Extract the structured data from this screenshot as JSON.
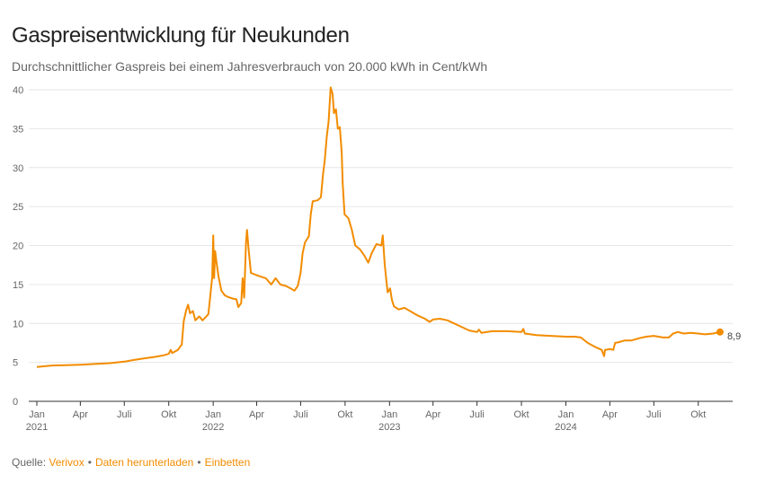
{
  "chart_data": {
    "type": "line",
    "title": "Gaspreisentwicklung für Neukunden",
    "subtitle": "Durchschnittlicher Gaspreis bei einem Jahresverbrauch von 20.000 kWh in Cent/kWh",
    "ylim": [
      0,
      40
    ],
    "yticks": [
      0,
      5,
      10,
      15,
      20,
      25,
      30,
      35,
      40
    ],
    "xlim": [
      "2021-01-01",
      "2024-11-30"
    ],
    "xticks": [
      {
        "date": "2021-01-01",
        "label": "Jan",
        "year": "2021"
      },
      {
        "date": "2021-04-01",
        "label": "Apr",
        "year": ""
      },
      {
        "date": "2021-07-01",
        "label": "Juli",
        "year": ""
      },
      {
        "date": "2021-10-01",
        "label": "Okt",
        "year": ""
      },
      {
        "date": "2022-01-01",
        "label": "Jan",
        "year": "2022"
      },
      {
        "date": "2022-04-01",
        "label": "Apr",
        "year": ""
      },
      {
        "date": "2022-07-01",
        "label": "Juli",
        "year": ""
      },
      {
        "date": "2022-10-01",
        "label": "Okt",
        "year": ""
      },
      {
        "date": "2023-01-01",
        "label": "Jan",
        "year": "2023"
      },
      {
        "date": "2023-04-01",
        "label": "Apr",
        "year": ""
      },
      {
        "date": "2023-07-01",
        "label": "Juli",
        "year": ""
      },
      {
        "date": "2023-10-01",
        "label": "Okt",
        "year": ""
      },
      {
        "date": "2024-01-01",
        "label": "Jan",
        "year": "2024"
      },
      {
        "date": "2024-04-01",
        "label": "Apr",
        "year": ""
      },
      {
        "date": "2024-07-01",
        "label": "Juli",
        "year": ""
      },
      {
        "date": "2024-10-01",
        "label": "Okt",
        "year": ""
      }
    ],
    "grid": true,
    "series": [
      {
        "color": "#f28c00",
        "end_label": "8,9",
        "points": [
          [
            "2021-01-01",
            4.4
          ],
          [
            "2021-01-15",
            4.5
          ],
          [
            "2021-02-01",
            4.6
          ],
          [
            "2021-03-01",
            4.65
          ],
          [
            "2021-04-01",
            4.7
          ],
          [
            "2021-05-01",
            4.8
          ],
          [
            "2021-06-01",
            4.9
          ],
          [
            "2021-07-01",
            5.1
          ],
          [
            "2021-07-20",
            5.3
          ],
          [
            "2021-08-10",
            5.5
          ],
          [
            "2021-09-01",
            5.7
          ],
          [
            "2021-09-20",
            5.9
          ],
          [
            "2021-10-01",
            6.1
          ],
          [
            "2021-10-05",
            6.6
          ],
          [
            "2021-10-08",
            6.2
          ],
          [
            "2021-10-20",
            6.6
          ],
          [
            "2021-10-28",
            7.3
          ],
          [
            "2021-11-01",
            10.3
          ],
          [
            "2021-11-06",
            11.7
          ],
          [
            "2021-11-10",
            12.4
          ],
          [
            "2021-11-14",
            11.3
          ],
          [
            "2021-11-20",
            11.6
          ],
          [
            "2021-11-25",
            10.4
          ],
          [
            "2021-12-03",
            10.9
          ],
          [
            "2021-12-10",
            10.4
          ],
          [
            "2021-12-18",
            10.9
          ],
          [
            "2021-12-22",
            11.2
          ],
          [
            "2021-12-26",
            13.5
          ],
          [
            "2021-12-30",
            16.0
          ],
          [
            "2022-01-01",
            21.3
          ],
          [
            "2022-01-03",
            15.8
          ],
          [
            "2022-01-05",
            19.3
          ],
          [
            "2022-01-08",
            17.8
          ],
          [
            "2022-01-12",
            16.0
          ],
          [
            "2022-01-18",
            14.2
          ],
          [
            "2022-01-25",
            13.6
          ],
          [
            "2022-02-01",
            13.4
          ],
          [
            "2022-02-10",
            13.2
          ],
          [
            "2022-02-18",
            13.1
          ],
          [
            "2022-02-22",
            12.1
          ],
          [
            "2022-02-28",
            12.6
          ],
          [
            "2022-03-03",
            15.8
          ],
          [
            "2022-03-06",
            13.3
          ],
          [
            "2022-03-10",
            20.5
          ],
          [
            "2022-03-12",
            22.0
          ],
          [
            "2022-03-15",
            19.7
          ],
          [
            "2022-03-20",
            16.5
          ],
          [
            "2022-04-01",
            16.2
          ],
          [
            "2022-04-10",
            16.0
          ],
          [
            "2022-04-20",
            15.8
          ],
          [
            "2022-05-01",
            15.0
          ],
          [
            "2022-05-10",
            15.8
          ],
          [
            "2022-05-20",
            15.0
          ],
          [
            "2022-06-01",
            14.8
          ],
          [
            "2022-06-10",
            14.5
          ],
          [
            "2022-06-18",
            14.2
          ],
          [
            "2022-06-25",
            14.8
          ],
          [
            "2022-07-01",
            16.5
          ],
          [
            "2022-07-05",
            19.0
          ],
          [
            "2022-07-10",
            20.4
          ],
          [
            "2022-07-18",
            21.2
          ],
          [
            "2022-07-22",
            24.0
          ],
          [
            "2022-07-26",
            25.7
          ],
          [
            "2022-08-05",
            25.8
          ],
          [
            "2022-08-12",
            26.2
          ],
          [
            "2022-08-16",
            29.0
          ],
          [
            "2022-08-20",
            31.0
          ],
          [
            "2022-08-24",
            34.0
          ],
          [
            "2022-08-28",
            36.0
          ],
          [
            "2022-09-01",
            40.3
          ],
          [
            "2022-09-05",
            39.5
          ],
          [
            "2022-09-08",
            37.0
          ],
          [
            "2022-09-12",
            37.5
          ],
          [
            "2022-09-16",
            35.0
          ],
          [
            "2022-09-20",
            35.2
          ],
          [
            "2022-09-24",
            32.0
          ],
          [
            "2022-09-26",
            28.0
          ],
          [
            "2022-09-30",
            24.0
          ],
          [
            "2022-10-08",
            23.5
          ],
          [
            "2022-10-15",
            22.0
          ],
          [
            "2022-10-22",
            20.0
          ],
          [
            "2022-11-01",
            19.5
          ],
          [
            "2022-11-10",
            18.7
          ],
          [
            "2022-11-18",
            17.8
          ],
          [
            "2022-11-25",
            19.0
          ],
          [
            "2022-12-05",
            20.2
          ],
          [
            "2022-12-15",
            20.0
          ],
          [
            "2022-12-18",
            21.3
          ],
          [
            "2022-12-22",
            17.5
          ],
          [
            "2022-12-28",
            14.0
          ],
          [
            "2023-01-02",
            14.5
          ],
          [
            "2023-01-06",
            13.0
          ],
          [
            "2023-01-10",
            12.2
          ],
          [
            "2023-01-20",
            11.8
          ],
          [
            "2023-02-01",
            12.0
          ],
          [
            "2023-02-15",
            11.5
          ],
          [
            "2023-03-01",
            11.0
          ],
          [
            "2023-03-15",
            10.6
          ],
          [
            "2023-03-25",
            10.2
          ],
          [
            "2023-04-01",
            10.5
          ],
          [
            "2023-04-15",
            10.6
          ],
          [
            "2023-05-01",
            10.4
          ],
          [
            "2023-05-15",
            10.0
          ],
          [
            "2023-06-01",
            9.5
          ],
          [
            "2023-06-15",
            9.1
          ],
          [
            "2023-07-01",
            8.9
          ],
          [
            "2023-07-05",
            9.2
          ],
          [
            "2023-07-10",
            8.8
          ],
          [
            "2023-08-01",
            9.0
          ],
          [
            "2023-09-01",
            9.0
          ],
          [
            "2023-10-01",
            8.9
          ],
          [
            "2023-10-05",
            9.3
          ],
          [
            "2023-10-08",
            8.7
          ],
          [
            "2023-11-01",
            8.5
          ],
          [
            "2023-12-01",
            8.4
          ],
          [
            "2024-01-01",
            8.3
          ],
          [
            "2024-01-20",
            8.3
          ],
          [
            "2024-02-01",
            8.2
          ],
          [
            "2024-02-15",
            7.5
          ],
          [
            "2024-03-01",
            7.0
          ],
          [
            "2024-03-15",
            6.6
          ],
          [
            "2024-03-20",
            5.8
          ],
          [
            "2024-03-22",
            6.6
          ],
          [
            "2024-04-01",
            6.7
          ],
          [
            "2024-04-08",
            6.6
          ],
          [
            "2024-04-12",
            7.5
          ],
          [
            "2024-04-20",
            7.6
          ],
          [
            "2024-05-01",
            7.8
          ],
          [
            "2024-05-15",
            7.8
          ],
          [
            "2024-06-01",
            8.1
          ],
          [
            "2024-06-15",
            8.3
          ],
          [
            "2024-07-01",
            8.4
          ],
          [
            "2024-07-20",
            8.2
          ],
          [
            "2024-08-01",
            8.2
          ],
          [
            "2024-08-10",
            8.7
          ],
          [
            "2024-08-20",
            8.9
          ],
          [
            "2024-09-01",
            8.7
          ],
          [
            "2024-09-15",
            8.8
          ],
          [
            "2024-10-01",
            8.7
          ],
          [
            "2024-10-15",
            8.6
          ],
          [
            "2024-11-01",
            8.7
          ],
          [
            "2024-11-15",
            8.9
          ]
        ]
      }
    ]
  },
  "source": {
    "label": "Quelle:",
    "links": [
      "Verivox",
      "Daten herunterladen",
      "Einbetten"
    ],
    "separator": "•"
  }
}
